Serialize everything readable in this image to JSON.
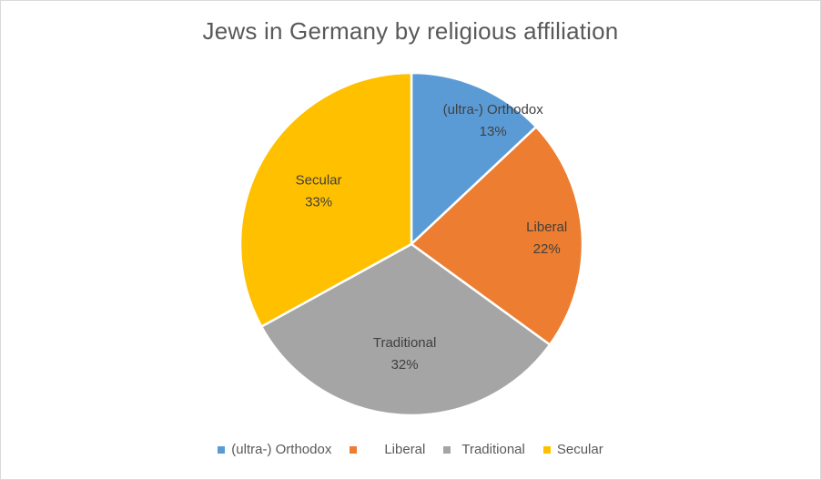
{
  "chart_data": {
    "type": "pie",
    "title": "Jews in Germany by religious affiliation",
    "categories": [
      "(ultra-) Orthodox",
      "Liberal",
      "Traditional",
      "Secular"
    ],
    "values": [
      13,
      22,
      32,
      33
    ],
    "labels_pct": [
      "13%",
      "22%",
      "32%",
      "33%"
    ],
    "colors": [
      "#5B9BD5",
      "#ED7D31",
      "#A5A5A5",
      "#FFC000"
    ],
    "legend_position": "bottom",
    "start_angle_deg": 0,
    "direction": "clockwise"
  }
}
